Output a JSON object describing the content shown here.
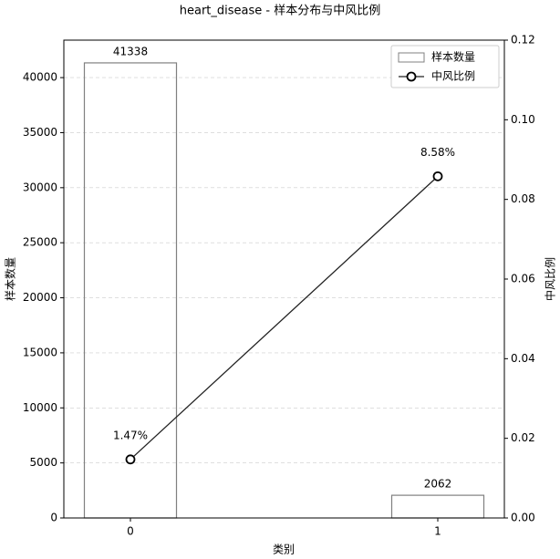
{
  "chart_data": {
    "type": "bar",
    "title": "heart_disease - 样本分布与中风比例",
    "xlabel": "类别",
    "ylabel": "样本数量",
    "y2label": "中风比例",
    "categories": [
      "0",
      "1"
    ],
    "series": [
      {
        "name": "样本数量",
        "type": "bar",
        "color": "#808080",
        "values": [
          41338,
          2062
        ]
      },
      {
        "name": "中风比例",
        "type": "line",
        "axis": "y2",
        "color": "#222222",
        "values": [
          0.0147,
          0.0858
        ],
        "value_labels": [
          "1.47%",
          "8.58%"
        ]
      }
    ],
    "ylim": [
      0,
      43405
    ],
    "yticks": [
      0,
      5000,
      10000,
      15000,
      20000,
      25000,
      30000,
      35000,
      40000
    ],
    "y2lim": [
      0,
      0.12
    ],
    "y2ticks": [
      {
        "value": 0,
        "label": "0.00"
      },
      {
        "value": 0.02,
        "label": "0.02"
      },
      {
        "value": 0.04,
        "label": "0.04"
      },
      {
        "value": 0.06,
        "label": "0.06"
      },
      {
        "value": 0.08,
        "label": "0.08"
      },
      {
        "value": 0.1,
        "label": "0.10"
      },
      {
        "value": 0.12,
        "label": "0.12"
      }
    ],
    "grid": true,
    "legend": "upper right"
  }
}
